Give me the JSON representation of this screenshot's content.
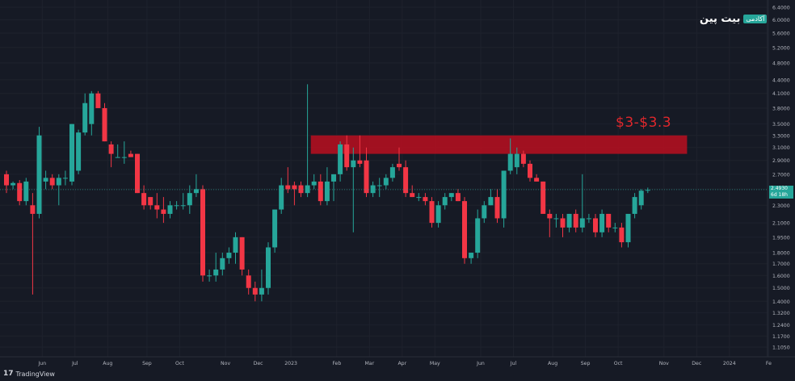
{
  "brand": {
    "name": "بیت پین",
    "badge": "آکادمی"
  },
  "footer": {
    "tradingview": "TradingView",
    "tv_mark": "17"
  },
  "annotation": {
    "text": "$3-$3.3",
    "color": "#e0272c"
  },
  "price_tag": {
    "price": "2.4930",
    "countdown": "6d 18h"
  },
  "chart_data": {
    "type": "candlestick",
    "log_scale": true,
    "ylim": [
      1.05,
      6.4
    ],
    "up_color": "#26a69a",
    "down_color": "#f23645",
    "resistance_zone": {
      "low": 3.0,
      "high": 3.3,
      "from_index": 47,
      "to_index": 104,
      "color": "#b01020"
    },
    "last_price_line": 2.493,
    "yticks": [
      "6.4000",
      "6.0000",
      "5.6000",
      "5.2000",
      "4.8000",
      "4.4000",
      "4.1000",
      "3.8000",
      "3.5000",
      "3.3000",
      "3.1000",
      "2.9000",
      "2.7000",
      "2.5000",
      "2.3000",
      "2.1000",
      "1.9500",
      "1.8000",
      "1.7000",
      "1.6000",
      "1.5000",
      "1.4000",
      "1.3200",
      "1.2400",
      "1.1700",
      "1.1050"
    ],
    "xticks": [
      {
        "label": "Jun",
        "index": 3
      },
      {
        "label": "Jul",
        "index": 8
      },
      {
        "label": "Aug",
        "index": 13
      },
      {
        "label": "Sep",
        "index": 19
      },
      {
        "label": "Oct",
        "index": 24
      },
      {
        "label": "Nov",
        "index": 31
      },
      {
        "label": "Dec",
        "index": 36
      },
      {
        "label": "2023",
        "index": 41
      },
      {
        "label": "Feb",
        "index": 48
      },
      {
        "label": "Mar",
        "index": 53
      },
      {
        "label": "Apr",
        "index": 58
      },
      {
        "label": "May",
        "index": 63
      },
      {
        "label": "Jun",
        "index": 70
      },
      {
        "label": "Jul",
        "index": 75
      },
      {
        "label": "Aug",
        "index": 81
      },
      {
        "label": "Sep",
        "index": 86
      },
      {
        "label": "Oct",
        "index": 91
      },
      {
        "label": "Nov",
        "index": 98
      },
      {
        "label": "Dec",
        "index": 103
      },
      {
        "label": "2024",
        "index": 108
      },
      {
        "label": "Fe",
        "index": 114
      }
    ],
    "candles": [
      {
        "o": 2.7,
        "h": 2.75,
        "l": 2.45,
        "c": 2.55
      },
      {
        "o": 2.55,
        "h": 2.6,
        "l": 2.5,
        "c": 2.58
      },
      {
        "o": 2.58,
        "h": 2.62,
        "l": 2.3,
        "c": 2.35
      },
      {
        "o": 2.35,
        "h": 2.65,
        "l": 2.3,
        "c": 2.6
      },
      {
        "o": 2.3,
        "h": 2.45,
        "l": 1.45,
        "c": 2.2
      },
      {
        "o": 2.2,
        "h": 3.45,
        "l": 2.15,
        "c": 3.3
      },
      {
        "o": 2.6,
        "h": 2.75,
        "l": 2.5,
        "c": 2.65
      },
      {
        "o": 2.65,
        "h": 2.7,
        "l": 2.5,
        "c": 2.55
      },
      {
        "o": 2.55,
        "h": 2.7,
        "l": 2.3,
        "c": 2.65
      },
      {
        "o": 2.65,
        "h": 2.75,
        "l": 2.55,
        "c": 2.65
      },
      {
        "o": 2.6,
        "h": 3.5,
        "l": 2.55,
        "c": 3.5
      },
      {
        "o": 2.75,
        "h": 3.4,
        "l": 2.7,
        "c": 3.35
      },
      {
        "o": 3.35,
        "h": 4.1,
        "l": 3.3,
        "c": 3.9
      },
      {
        "o": 3.5,
        "h": 4.15,
        "l": 3.3,
        "c": 4.1
      },
      {
        "o": 4.1,
        "h": 4.15,
        "l": 3.8,
        "c": 3.8
      },
      {
        "o": 3.8,
        "h": 3.9,
        "l": 3.2,
        "c": 3.2
      },
      {
        "o": 3.15,
        "h": 3.2,
        "l": 2.8,
        "c": 3.0
      },
      {
        "o": 2.95,
        "h": 3.15,
        "l": 2.95,
        "c": 2.95
      },
      {
        "o": 2.95,
        "h": 3.2,
        "l": 2.85,
        "c": 2.95
      },
      {
        "o": 3.0,
        "h": 3.05,
        "l": 2.95,
        "c": 2.95
      },
      {
        "o": 3.0,
        "h": 3.0,
        "l": 2.45,
        "c": 2.45
      },
      {
        "o": 2.45,
        "h": 2.55,
        "l": 2.25,
        "c": 2.3
      },
      {
        "o": 2.4,
        "h": 2.4,
        "l": 2.25,
        "c": 2.3
      },
      {
        "o": 2.3,
        "h": 2.45,
        "l": 2.15,
        "c": 2.25
      },
      {
        "o": 2.25,
        "h": 2.4,
        "l": 2.1,
        "c": 2.2
      },
      {
        "o": 2.2,
        "h": 2.35,
        "l": 2.15,
        "c": 2.3
      },
      {
        "o": 2.3,
        "h": 2.35,
        "l": 2.25,
        "c": 2.3
      },
      {
        "o": 2.3,
        "h": 2.45,
        "l": 2.25,
        "c": 2.3
      },
      {
        "o": 2.3,
        "h": 2.55,
        "l": 2.2,
        "c": 2.45
      },
      {
        "o": 2.45,
        "h": 2.7,
        "l": 2.4,
        "c": 2.5
      },
      {
        "o": 2.5,
        "h": 2.55,
        "l": 1.55,
        "c": 1.6
      },
      {
        "o": 1.6,
        "h": 1.65,
        "l": 1.55,
        "c": 1.6
      },
      {
        "o": 1.6,
        "h": 1.8,
        "l": 1.55,
        "c": 1.65
      },
      {
        "o": 1.65,
        "h": 1.8,
        "l": 1.6,
        "c": 1.75
      },
      {
        "o": 1.75,
        "h": 1.85,
        "l": 1.7,
        "c": 1.8
      },
      {
        "o": 1.8,
        "h": 2.0,
        "l": 1.7,
        "c": 1.95
      },
      {
        "o": 1.95,
        "h": 1.95,
        "l": 1.6,
        "c": 1.65
      },
      {
        "o": 1.6,
        "h": 1.65,
        "l": 1.45,
        "c": 1.5
      },
      {
        "o": 1.5,
        "h": 1.55,
        "l": 1.4,
        "c": 1.45
      },
      {
        "o": 1.45,
        "h": 1.65,
        "l": 1.4,
        "c": 1.5
      },
      {
        "o": 1.5,
        "h": 1.9,
        "l": 1.45,
        "c": 1.85
      },
      {
        "o": 1.85,
        "h": 2.25,
        "l": 1.8,
        "c": 2.25
      },
      {
        "o": 2.25,
        "h": 2.65,
        "l": 2.2,
        "c": 2.55
      },
      {
        "o": 2.55,
        "h": 2.8,
        "l": 2.45,
        "c": 2.5
      },
      {
        "o": 2.55,
        "h": 2.6,
        "l": 2.3,
        "c": 2.5
      },
      {
        "o": 2.55,
        "h": 2.6,
        "l": 2.4,
        "c": 2.45
      },
      {
        "o": 2.45,
        "h": 4.3,
        "l": 2.4,
        "c": 2.55
      },
      {
        "o": 2.55,
        "h": 2.7,
        "l": 2.5,
        "c": 2.6
      },
      {
        "o": 2.6,
        "h": 2.7,
        "l": 2.3,
        "c": 2.35
      },
      {
        "o": 2.35,
        "h": 2.8,
        "l": 2.3,
        "c": 2.6
      },
      {
        "o": 2.6,
        "h": 2.7,
        "l": 2.35,
        "c": 2.7
      },
      {
        "o": 2.7,
        "h": 3.2,
        "l": 2.6,
        "c": 3.15
      },
      {
        "o": 3.15,
        "h": 3.3,
        "l": 2.75,
        "c": 2.8
      },
      {
        "o": 2.8,
        "h": 3.1,
        "l": 2.0,
        "c": 2.9
      },
      {
        "o": 2.9,
        "h": 3.3,
        "l": 2.8,
        "c": 2.85
      },
      {
        "o": 2.9,
        "h": 3.1,
        "l": 2.4,
        "c": 2.45
      },
      {
        "o": 2.45,
        "h": 2.6,
        "l": 2.4,
        "c": 2.55
      },
      {
        "o": 2.55,
        "h": 2.65,
        "l": 2.4,
        "c": 2.55
      },
      {
        "o": 2.55,
        "h": 2.7,
        "l": 2.5,
        "c": 2.65
      },
      {
        "o": 2.65,
        "h": 2.85,
        "l": 2.6,
        "c": 2.8
      },
      {
        "o": 2.85,
        "h": 3.1,
        "l": 2.75,
        "c": 2.8
      },
      {
        "o": 2.8,
        "h": 2.9,
        "l": 2.4,
        "c": 2.45
      },
      {
        "o": 2.45,
        "h": 2.55,
        "l": 2.4,
        "c": 2.4
      },
      {
        "o": 2.4,
        "h": 2.45,
        "l": 2.35,
        "c": 2.4
      },
      {
        "o": 2.4,
        "h": 2.45,
        "l": 2.3,
        "c": 2.35
      },
      {
        "o": 2.35,
        "h": 2.4,
        "l": 2.05,
        "c": 2.1
      },
      {
        "o": 2.1,
        "h": 2.35,
        "l": 2.05,
        "c": 2.3
      },
      {
        "o": 2.3,
        "h": 2.45,
        "l": 2.25,
        "c": 2.4
      },
      {
        "o": 2.4,
        "h": 2.45,
        "l": 2.35,
        "c": 2.45
      },
      {
        "o": 2.45,
        "h": 2.5,
        "l": 2.35,
        "c": 2.35
      },
      {
        "o": 2.35,
        "h": 2.4,
        "l": 1.7,
        "c": 1.75
      },
      {
        "o": 1.75,
        "h": 1.8,
        "l": 1.7,
        "c": 1.8
      },
      {
        "o": 1.8,
        "h": 2.25,
        "l": 1.75,
        "c": 2.15
      },
      {
        "o": 2.15,
        "h": 2.35,
        "l": 2.1,
        "c": 2.3
      },
      {
        "o": 2.3,
        "h": 2.5,
        "l": 2.3,
        "c": 2.4
      },
      {
        "o": 2.4,
        "h": 2.5,
        "l": 2.1,
        "c": 2.15
      },
      {
        "o": 2.15,
        "h": 2.75,
        "l": 2.05,
        "c": 2.75
      },
      {
        "o": 2.75,
        "h": 3.25,
        "l": 2.7,
        "c": 3.0
      },
      {
        "o": 2.8,
        "h": 3.1,
        "l": 2.7,
        "c": 3.0
      },
      {
        "o": 3.0,
        "h": 3.05,
        "l": 2.8,
        "c": 2.85
      },
      {
        "o": 2.85,
        "h": 2.9,
        "l": 2.6,
        "c": 2.65
      },
      {
        "o": 2.65,
        "h": 2.7,
        "l": 2.6,
        "c": 2.6
      },
      {
        "o": 2.6,
        "h": 2.6,
        "l": 2.2,
        "c": 2.2
      },
      {
        "o": 2.2,
        "h": 2.25,
        "l": 1.95,
        "c": 2.15
      },
      {
        "o": 2.15,
        "h": 2.2,
        "l": 2.05,
        "c": 2.15
      },
      {
        "o": 2.15,
        "h": 2.2,
        "l": 1.95,
        "c": 2.05
      },
      {
        "o": 2.05,
        "h": 2.2,
        "l": 2.0,
        "c": 2.2
      },
      {
        "o": 2.2,
        "h": 2.25,
        "l": 2.0,
        "c": 2.05
      },
      {
        "o": 2.05,
        "h": 2.7,
        "l": 2.0,
        "c": 2.15
      },
      {
        "o": 2.15,
        "h": 2.2,
        "l": 2.1,
        "c": 2.15
      },
      {
        "o": 2.15,
        "h": 2.2,
        "l": 1.95,
        "c": 2.0
      },
      {
        "o": 2.0,
        "h": 2.25,
        "l": 1.95,
        "c": 2.2
      },
      {
        "o": 2.2,
        "h": 2.2,
        "l": 2.0,
        "c": 2.05
      },
      {
        "o": 2.05,
        "h": 2.1,
        "l": 2.0,
        "c": 2.05
      },
      {
        "o": 2.05,
        "h": 2.1,
        "l": 1.85,
        "c": 1.9
      },
      {
        "o": 1.9,
        "h": 2.2,
        "l": 1.85,
        "c": 2.2
      },
      {
        "o": 2.2,
        "h": 2.45,
        "l": 2.15,
        "c": 2.4
      },
      {
        "o": 2.3,
        "h": 2.5,
        "l": 2.25,
        "c": 2.48
      },
      {
        "o": 2.48,
        "h": 2.52,
        "l": 2.45,
        "c": 2.49
      }
    ]
  }
}
